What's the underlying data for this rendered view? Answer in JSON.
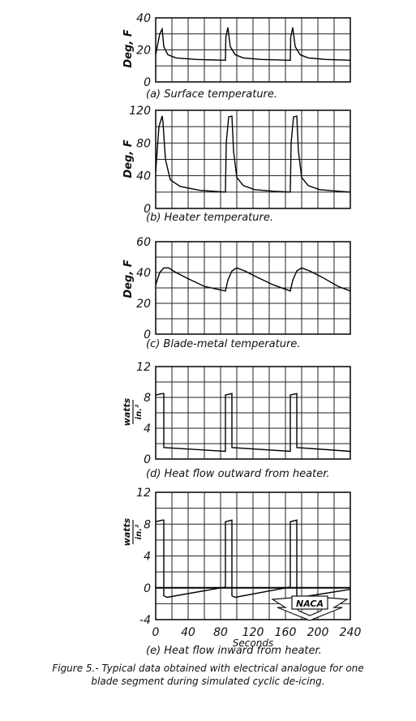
{
  "caption": {
    "line1": "Figure 5.- Typical data obtained with electrical analogue for one",
    "line2": "blade segment during simulated cyclic de-icing."
  },
  "logo_text": "NACA",
  "x_axis": {
    "label": "Seconds",
    "ticks": [
      0,
      40,
      80,
      120,
      160,
      200,
      240
    ],
    "range": [
      0,
      240
    ]
  },
  "chart_data": [
    {
      "type": "line",
      "caption": "(a)  Surface temperature.",
      "ylabel": "Deg, F",
      "xlim": [
        0,
        240
      ],
      "ylim": [
        0,
        40
      ],
      "yticks": [
        0,
        20,
        40
      ],
      "x": [
        0,
        5,
        8,
        10,
        15,
        25,
        50,
        86,
        86.5,
        89,
        92,
        98,
        108,
        130,
        166,
        166.5,
        169,
        172,
        178,
        188,
        210,
        240
      ],
      "values": [
        17,
        30,
        33,
        22,
        17,
        15,
        14,
        13.5,
        28,
        34,
        22,
        17,
        15,
        14,
        13.5,
        28,
        34,
        22,
        17,
        15,
        14,
        13.5
      ]
    },
    {
      "type": "line",
      "caption": "(b)  Heater  temperature.",
      "ylabel": "Deg, F",
      "xlim": [
        0,
        240
      ],
      "ylim": [
        0,
        120
      ],
      "yticks": [
        0,
        40,
        80,
        120
      ],
      "x": [
        0,
        4,
        8,
        9,
        12,
        18,
        30,
        55,
        86,
        87,
        90,
        94,
        96,
        100,
        108,
        122,
        145,
        166,
        167,
        170,
        174,
        176,
        180,
        188,
        202,
        225,
        240
      ],
      "values": [
        45,
        100,
        113,
        105,
        60,
        35,
        27,
        22,
        20,
        80,
        112,
        113,
        70,
        38,
        28,
        23,
        21,
        20,
        80,
        112,
        113,
        70,
        38,
        28,
        23,
        21,
        20
      ]
    },
    {
      "type": "line",
      "caption": "(c)  Blade-metal  temperature.",
      "ylabel": "Deg, F",
      "xlim": [
        0,
        240
      ],
      "ylim": [
        0,
        60
      ],
      "yticks": [
        0,
        20,
        40,
        60
      ],
      "x": [
        0,
        5,
        10,
        16,
        25,
        40,
        60,
        86,
        89,
        94,
        100,
        110,
        125,
        145,
        166,
        169,
        174,
        180,
        190,
        205,
        225,
        240
      ],
      "values": [
        32,
        40,
        43,
        43,
        40,
        36,
        31,
        28,
        35,
        41,
        43,
        41,
        37,
        32,
        28,
        35,
        41,
        43,
        41,
        37,
        31,
        28
      ]
    },
    {
      "type": "line",
      "caption": "(d)  Heat  flow  outward  from  heater.",
      "ylabel": "watts / in.²",
      "xlim": [
        0,
        240
      ],
      "ylim": [
        0,
        12
      ],
      "yticks": [
        0,
        4,
        8,
        12
      ],
      "x": [
        0,
        8,
        10,
        10,
        86,
        86,
        94,
        94,
        166,
        166,
        174,
        174,
        240
      ],
      "values": [
        8.3,
        8.5,
        8.5,
        1.5,
        1.0,
        8.3,
        8.5,
        1.5,
        1.0,
        8.3,
        8.5,
        1.5,
        1.0
      ]
    },
    {
      "type": "line",
      "caption": "(e)  Heat  flow  inward  from  heater.",
      "ylabel": "watts / in.²",
      "xlim": [
        0,
        240
      ],
      "ylim": [
        -4,
        12
      ],
      "yticks": [
        -4,
        0,
        4,
        8,
        12
      ],
      "x": [
        0,
        8,
        10,
        10,
        14,
        86,
        86,
        94,
        94,
        98,
        166,
        166,
        174,
        174,
        178,
        240
      ],
      "values": [
        8.3,
        8.5,
        8.5,
        -1.0,
        -1.2,
        0.1,
        8.3,
        8.5,
        -1.0,
        -1.2,
        0.1,
        8.3,
        8.5,
        -1.0,
        -1.2,
        -0.2
      ]
    }
  ]
}
